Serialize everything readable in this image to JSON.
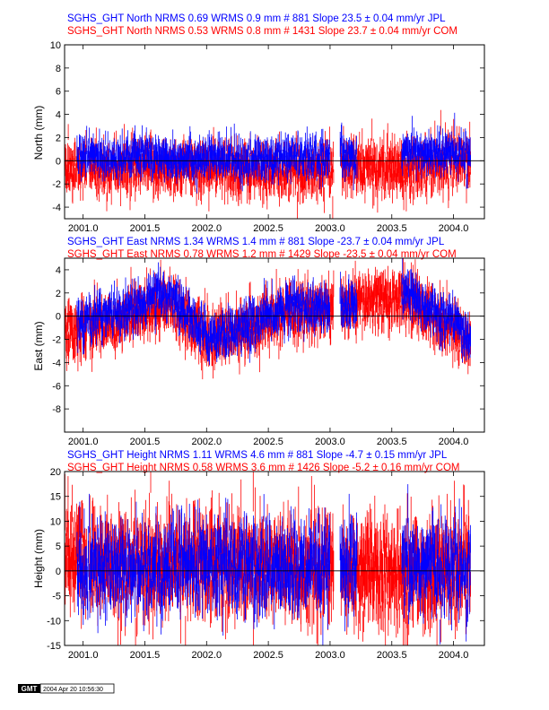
{
  "chart_data": [
    {
      "type": "scatter",
      "title_lines": [
        {
          "text": "SGHS_GHT North NRMS 0.69 WRMS  0.9 mm # 881 Slope  23.5 ±  0.04 mm/yr JPL",
          "color": "#0000ff"
        },
        {
          "text": "SGHS_GHT North NRMS 0.53 WRMS  0.8 mm # 1431 Slope  23.7 ±  0.04 mm/yr COM",
          "color": "#ff0000"
        }
      ],
      "ylabel": "North (mm)",
      "xlim": [
        2000.85,
        2004.25
      ],
      "ylim": [
        -5,
        10
      ],
      "x_ticks": [
        2001.0,
        2001.5,
        2002.0,
        2002.5,
        2003.0,
        2003.5,
        2004.0
      ],
      "x_tick_labels": [
        "2001.0",
        "2001.5",
        "2002.0",
        "2002.5",
        "2003.0",
        "2003.5",
        "2004.0"
      ],
      "y_ticks": [
        -4,
        -2,
        0,
        2,
        4,
        6,
        8,
        10
      ],
      "y_tick_labels": [
        "-4",
        "-2",
        "0",
        "2",
        "4",
        "6",
        "8",
        "10"
      ],
      "zero_line": 0,
      "series": [
        {
          "color": "#ff0000",
          "n": 1431,
          "spread": 1.0,
          "sigma": 0.9,
          "ranges": [
            [
              2000.85,
              2001.03
            ],
            [
              2001.05,
              2003.03
            ],
            [
              2003.09,
              2003.7
            ],
            [
              2003.7,
              2004.14
            ]
          ],
          "trend": [
            [
              2000.85,
              -0.8
            ],
            [
              2001.5,
              -0.6
            ],
            [
              2002.3,
              -0.7
            ],
            [
              2002.7,
              -1.0
            ],
            [
              2003.0,
              -0.5
            ],
            [
              2003.5,
              -0.6
            ],
            [
              2004.14,
              0.2
            ]
          ]
        },
        {
          "color": "#0000ff",
          "n": 881,
          "spread": 0.7,
          "sigma": 0.8,
          "ranges": [
            [
              2000.95,
              2003.0
            ],
            [
              2003.08,
              2003.22
            ],
            [
              2003.58,
              2004.14
            ]
          ],
          "trend": [
            [
              2000.95,
              0.5
            ],
            [
              2001.5,
              0.4
            ],
            [
              2002.3,
              0.1
            ],
            [
              2003.0,
              0.4
            ],
            [
              2003.6,
              0.7
            ],
            [
              2004.14,
              0.6
            ]
          ]
        }
      ]
    },
    {
      "type": "scatter",
      "title_lines": [
        {
          "text": "SGHS_GHT East NRMS 1.34 WRMS  1.4 mm # 881 Slope  -23.7 ±  0.04 mm/yr JPL",
          "color": "#0000ff"
        },
        {
          "text": "SGHS_GHT East NRMS 0.78 WRMS  1.2 mm # 1429 Slope  -23.5 ±  0.04 mm/yr COM",
          "color": "#ff0000"
        }
      ],
      "ylabel": "East (mm)",
      "xlim": [
        2000.85,
        2004.25
      ],
      "ylim": [
        -10,
        5
      ],
      "x_ticks": [
        2001.0,
        2001.5,
        2002.0,
        2002.5,
        2003.0,
        2003.5,
        2004.0
      ],
      "x_tick_labels": [
        "2001.0",
        "2001.5",
        "2002.0",
        "2002.5",
        "2003.0",
        "2003.5",
        "2004.0"
      ],
      "y_ticks": [
        -8,
        -6,
        -4,
        -2,
        0,
        2,
        4
      ],
      "y_tick_labels": [
        "-8",
        "-6",
        "-4",
        "-2",
        "0",
        "2",
        "4"
      ],
      "zero_line": 0,
      "series": [
        {
          "color": "#ff0000",
          "n": 1429,
          "spread": 1.0,
          "sigma": 1.0,
          "ranges": [
            [
              2000.85,
              2001.03
            ],
            [
              2001.05,
              2003.03
            ],
            [
              2003.09,
              2003.7
            ],
            [
              2003.7,
              2004.14
            ]
          ],
          "trend": [
            [
              2000.85,
              -1.5
            ],
            [
              2001.3,
              -0.3
            ],
            [
              2001.7,
              1.5
            ],
            [
              2002.0,
              -2.0
            ],
            [
              2002.3,
              -1.2
            ],
            [
              2002.7,
              0.5
            ],
            [
              2003.0,
              0.5
            ],
            [
              2003.3,
              1.2
            ],
            [
              2003.6,
              1.5
            ],
            [
              2004.0,
              -1.0
            ],
            [
              2004.14,
              -2.5
            ]
          ]
        },
        {
          "color": "#0000ff",
          "n": 881,
          "spread": 0.8,
          "sigma": 0.9,
          "ranges": [
            [
              2000.95,
              2003.0
            ],
            [
              2003.08,
              2003.22
            ],
            [
              2003.58,
              2004.14
            ]
          ],
          "trend": [
            [
              2000.95,
              -0.5
            ],
            [
              2001.3,
              0.5
            ],
            [
              2001.7,
              2.0
            ],
            [
              2002.0,
              -1.8
            ],
            [
              2002.3,
              -1.0
            ],
            [
              2002.7,
              1.0
            ],
            [
              2003.0,
              0.5
            ],
            [
              2003.6,
              2.0
            ],
            [
              2004.0,
              -0.5
            ],
            [
              2004.14,
              -2.0
            ]
          ]
        }
      ]
    },
    {
      "type": "scatter",
      "title_lines": [
        {
          "text": "SGHS_GHT Height NRMS 1.11 WRMS  4.6 mm # 881 Slope   -4.7 ±  0.15 mm/yr JPL",
          "color": "#0000ff"
        },
        {
          "text": "SGHS_GHT Height NRMS 0.58 WRMS  3.6 mm # 1426 Slope   -5.2 ±  0.16 mm/yr COM",
          "color": "#ff0000"
        }
      ],
      "ylabel": "Height (mm)",
      "xlim": [
        2000.85,
        2004.25
      ],
      "ylim": [
        -15,
        20
      ],
      "x_ticks": [
        2001.0,
        2001.5,
        2002.0,
        2002.5,
        2003.0,
        2003.5,
        2004.0
      ],
      "x_tick_labels": [
        "2001.0",
        "2001.5",
        "2002.0",
        "2002.5",
        "2003.0",
        "2003.5",
        "2004.0"
      ],
      "y_ticks": [
        -15,
        -10,
        -5,
        0,
        5,
        10,
        15,
        20
      ],
      "y_tick_labels": [
        "-15",
        "-10",
        "-5",
        "0",
        "5",
        "10",
        "15",
        "20"
      ],
      "zero_line": 0,
      "series": [
        {
          "color": "#ff0000",
          "n": 1426,
          "spread": 4.5,
          "sigma": 4.0,
          "ranges": [
            [
              2000.85,
              2001.03
            ],
            [
              2001.05,
              2003.03
            ],
            [
              2003.09,
              2003.7
            ],
            [
              2003.7,
              2004.14
            ]
          ],
          "trend": [
            [
              2000.85,
              4.0
            ],
            [
              2001.0,
              2.0
            ],
            [
              2001.5,
              1.0
            ],
            [
              2002.0,
              2.0
            ],
            [
              2002.5,
              1.0
            ],
            [
              2003.0,
              0.0
            ],
            [
              2003.5,
              -1.0
            ],
            [
              2004.14,
              1.0
            ]
          ]
        },
        {
          "color": "#0000ff",
          "n": 881,
          "spread": 4.0,
          "sigma": 3.5,
          "ranges": [
            [
              2000.95,
              2003.0
            ],
            [
              2003.08,
              2003.22
            ],
            [
              2003.58,
              2004.14
            ]
          ],
          "trend": [
            [
              2000.95,
              1.0
            ],
            [
              2001.5,
              0.5
            ],
            [
              2002.0,
              1.5
            ],
            [
              2002.5,
              0.5
            ],
            [
              2003.0,
              0.0
            ],
            [
              2003.6,
              1.0
            ],
            [
              2004.14,
              1.0
            ]
          ]
        }
      ]
    }
  ],
  "gmt_stamp": {
    "logo": "GMT",
    "timestamp": "2004 Apr 20 10:56:30"
  }
}
